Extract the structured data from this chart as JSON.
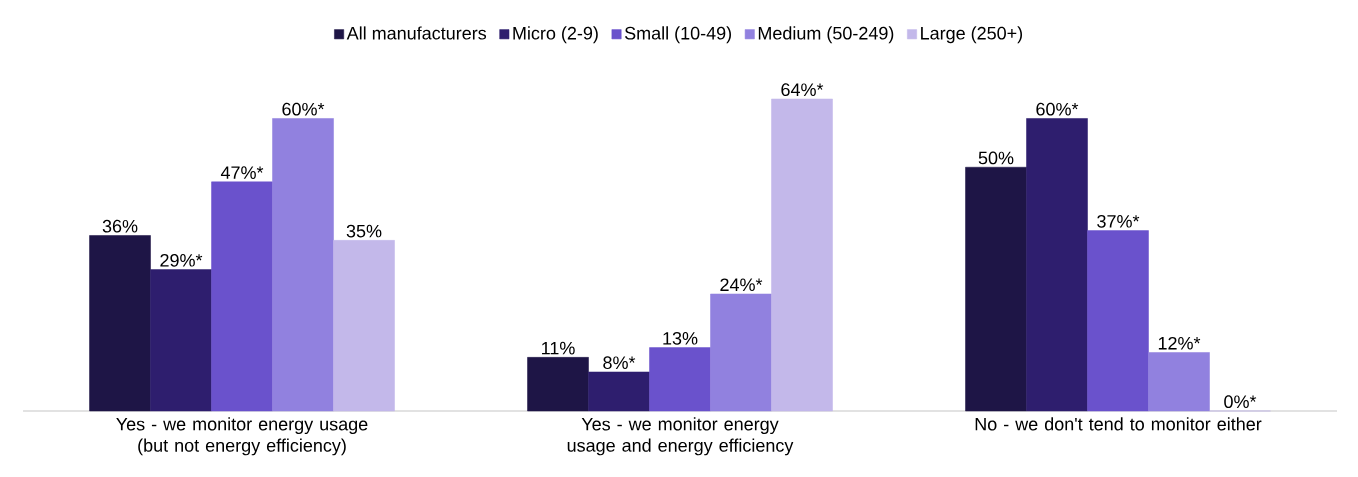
{
  "chart_data": {
    "type": "bar",
    "legend": "top",
    "categories": [
      "Yes - we monitor energy usage (but not energy efficiency)",
      "Yes - we monitor energy usage and energy efficiency",
      "No - we don't tend to monitor either"
    ],
    "series": [
      {
        "name": "All manufacturers",
        "color": "#1e1546",
        "values": [
          36,
          11,
          50
        ],
        "value_labels": [
          "36%",
          "11%",
          "50%"
        ]
      },
      {
        "name": "Micro (2-9)",
        "color": "#2e1e6e",
        "values": [
          29,
          8,
          60
        ],
        "value_labels": [
          "29%*",
          "8%*",
          "60%*"
        ]
      },
      {
        "name": "Small (10-49)",
        "color": "#6a52cc",
        "values": [
          47,
          13,
          37
        ],
        "value_labels": [
          "47%*",
          "13%",
          "37%*"
        ]
      },
      {
        "name": "Medium (50-249)",
        "color": "#9181df",
        "values": [
          60,
          24,
          12
        ],
        "value_labels": [
          "60%*",
          "24%*",
          "12%*"
        ]
      },
      {
        "name": "Large (250+)",
        "color": "#c3b8ea",
        "values": [
          35,
          64,
          0
        ],
        "value_labels": [
          "35%",
          "64%*",
          "0%*"
        ]
      }
    ]
  }
}
